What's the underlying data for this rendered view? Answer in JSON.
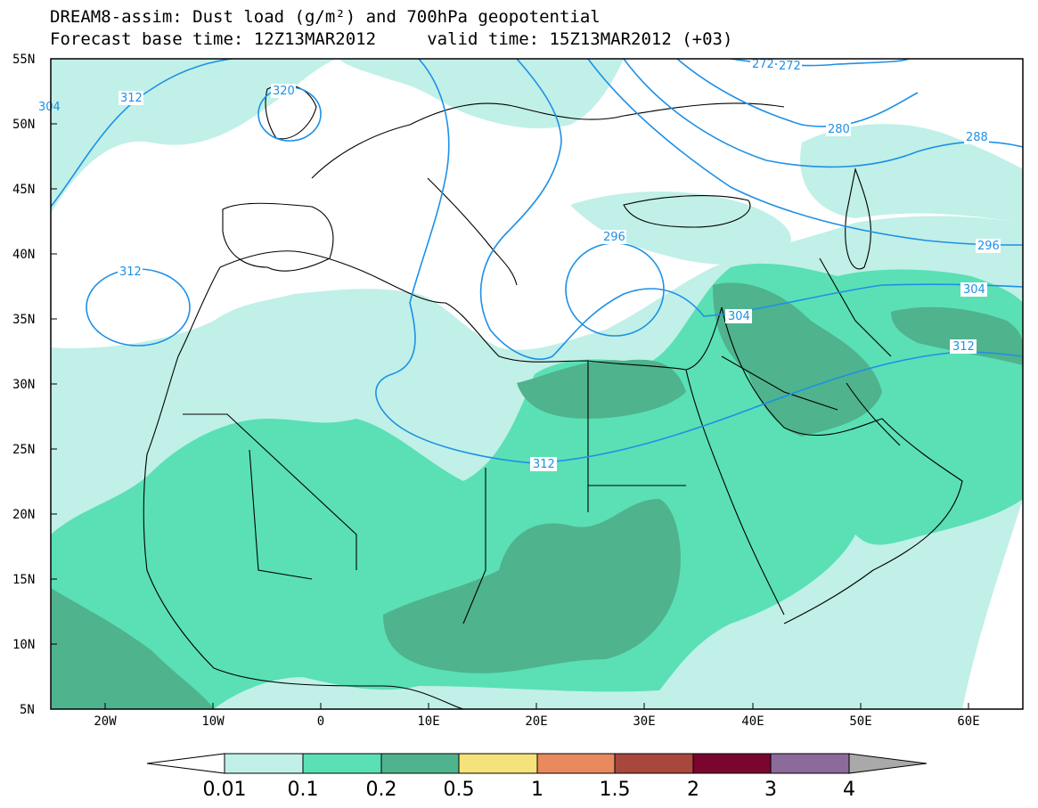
{
  "title": {
    "line1": "DREAM8-assim: Dust load (g/m²) and 700hPa geopotential",
    "line2": "Forecast base time: 12Z13MAR2012     valid time: 15Z13MAR2012 (+03)"
  },
  "axes": {
    "lat_labels": [
      "55N",
      "50N",
      "45N",
      "40N",
      "35N",
      "30N",
      "25N",
      "20N",
      "15N",
      "10N",
      "5N"
    ],
    "lon_labels": [
      "20W",
      "10W",
      "0",
      "10E",
      "20E",
      "30E",
      "40E",
      "50E",
      "60E"
    ]
  },
  "colors": {
    "ocean": "#ffffff",
    "land_border": "#000000",
    "contour": "#1e90e6",
    "class_001": "#c0f0e8",
    "class_01": "#5ae0b4",
    "class_02": "#4fb38e",
    "class_05": "#f5e27a",
    "class_1": "#e88a5e",
    "class_15": "#a8483c",
    "class_2": "#7a0630",
    "class_3": "#8c6a9a",
    "class_4": "#a9a9a9"
  },
  "contour_labels": [
    "312",
    "320",
    "312",
    "296",
    "280",
    "272",
    "272",
    "288",
    "296",
    "304",
    "304",
    "312",
    "312",
    "304"
  ],
  "colorbar": {
    "labels": [
      "0.01",
      "0.1",
      "0.2",
      "0.5",
      "1",
      "1.5",
      "2",
      "3",
      "4"
    ]
  },
  "chart_data": {
    "type": "heatmap",
    "title": "DREAM8-assim: Dust load (g/m²) and 700hPa geopotential",
    "subtitle": "Forecast base time: 12Z13MAR2012     valid time: 15Z13MAR2012 (+03)",
    "xlim": [
      -25,
      65
    ],
    "ylim": [
      5,
      55
    ],
    "x_ticks": [
      -20,
      -10,
      0,
      10,
      20,
      30,
      40,
      50,
      60
    ],
    "y_ticks": [
      55,
      50,
      45,
      40,
      35,
      30,
      25,
      20,
      15,
      10,
      5
    ],
    "dust_classes": [
      0.01,
      0.1,
      0.2,
      0.5,
      1,
      1.5,
      2,
      3,
      4
    ],
    "geopotential_contours": [
      272,
      280,
      288,
      296,
      304,
      312,
      320
    ]
  }
}
